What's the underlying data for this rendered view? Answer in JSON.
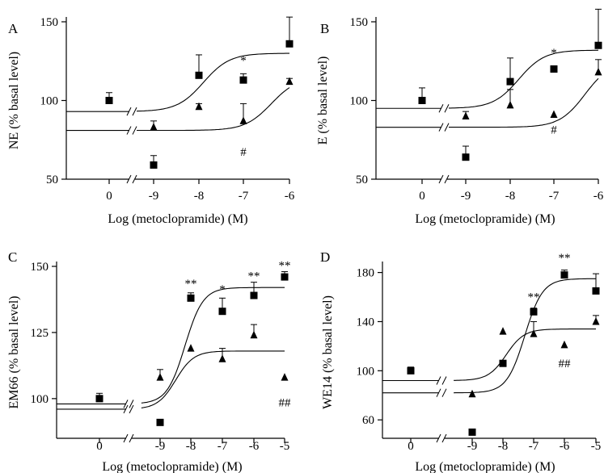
{
  "chart_data": [
    {
      "type": "scatter",
      "panel_label": "A",
      "xlabel": "Log (metoclopramide) (M)",
      "ylabel": "NE (% basal level)",
      "x_tick_labels": [
        "0",
        "-9",
        "-8",
        "-7",
        "-6"
      ],
      "y_ticks": [
        50,
        100,
        150
      ],
      "ylim": [
        50,
        150
      ],
      "series": [
        {
          "marker": "square",
          "x": [
            "0",
            "-9",
            "-8",
            "-7",
            "-6"
          ],
          "values": [
            100,
            59,
            116,
            113,
            136
          ],
          "errors": [
            5,
            6,
            13,
            4,
            17
          ],
          "fit": {
            "bottom": 93,
            "top": 130,
            "ec50_log": -7.9,
            "hill": 1.5
          }
        },
        {
          "marker": "triangle",
          "x": [
            "-9",
            "-8",
            "-7",
            "-6"
          ],
          "values": [
            83,
            96,
            87,
            112
          ],
          "errors": [
            4,
            2,
            11,
            2
          ],
          "fit": {
            "bottom": 81,
            "top": 115,
            "ec50_log": -6.4,
            "hill": 1.5
          }
        }
      ],
      "annotations": [
        {
          "text": "*",
          "x": "-7",
          "y": 123
        },
        {
          "text": "#",
          "x": "-7",
          "y": 65
        }
      ]
    },
    {
      "type": "scatter",
      "panel_label": "B",
      "xlabel": "Log (metoclopramide) (M)",
      "ylabel": "E (% basal level)",
      "x_tick_labels": [
        "0",
        "-9",
        "-8",
        "-7",
        "-6"
      ],
      "y_ticks": [
        50,
        100,
        150
      ],
      "ylim": [
        50,
        150
      ],
      "series": [
        {
          "marker": "square",
          "x": [
            "0",
            "-9",
            "-8",
            "-7",
            "-6"
          ],
          "values": [
            100,
            64,
            112,
            120,
            135
          ],
          "errors": [
            8,
            7,
            15,
            0,
            23
          ],
          "fit": {
            "bottom": 95,
            "top": 132,
            "ec50_log": -7.8,
            "hill": 1.5
          }
        },
        {
          "marker": "triangle",
          "x": [
            "-9",
            "-8",
            "-7",
            "-6"
          ],
          "values": [
            90,
            97,
            91,
            118
          ],
          "errors": [
            3,
            10,
            0,
            8
          ],
          "fit": {
            "bottom": 83,
            "top": 125,
            "ec50_log": -6.3,
            "hill": 1.5
          }
        }
      ],
      "annotations": [
        {
          "text": "*",
          "x": "-7",
          "y": 128
        },
        {
          "text": "#",
          "x": "-7",
          "y": 79
        }
      ]
    },
    {
      "type": "scatter",
      "panel_label": "C",
      "xlabel": "Log (metoclopramide) (M)",
      "ylabel": "EM66 (% basal level)",
      "x_tick_labels": [
        "0",
        "-9",
        "-8",
        "-7",
        "-6",
        "-5"
      ],
      "y_ticks": [
        100,
        125,
        150
      ],
      "ylim": [
        85,
        150
      ],
      "series": [
        {
          "marker": "square",
          "x": [
            "0",
            "-9",
            "-8",
            "-7",
            "-6",
            "-5"
          ],
          "values": [
            100,
            91,
            138,
            133,
            139,
            146
          ],
          "errors": [
            2,
            0,
            2,
            5,
            5,
            2
          ],
          "fit": {
            "bottom": 98,
            "top": 142,
            "ec50_log": -8.2,
            "hill": 1.5
          }
        },
        {
          "marker": "triangle",
          "x": [
            "-9",
            "-8",
            "-7",
            "-6",
            "-5"
          ],
          "values": [
            108,
            119,
            115,
            124,
            108
          ],
          "errors": [
            3,
            0,
            4,
            4,
            0
          ],
          "fit": {
            "bottom": 96,
            "top": 118,
            "ec50_log": -8.5,
            "hill": 1.5
          }
        }
      ],
      "annotations": [
        {
          "text": "**",
          "x": "-8",
          "y": 142
        },
        {
          "text": "*",
          "x": "-7",
          "y": 140
        },
        {
          "text": "**",
          "x": "-6",
          "y": 145
        },
        {
          "text": "**",
          "x": "-5",
          "y": 149
        },
        {
          "text": "##",
          "x": "-5",
          "y": 97
        }
      ]
    },
    {
      "type": "scatter",
      "panel_label": "D",
      "xlabel": "Log (metoclopramide) (M)",
      "ylabel": "WE14 (% basal level)",
      "x_tick_labels": [
        "0",
        "-9",
        "-8",
        "-7",
        "-6",
        "-5"
      ],
      "y_ticks": [
        60,
        100,
        140,
        180
      ],
      "ylim": [
        45,
        185
      ],
      "series": [
        {
          "marker": "square",
          "x": [
            "0",
            "-9",
            "-8",
            "-7",
            "-6",
            "-5"
          ],
          "values": [
            100,
            50,
            106,
            148,
            178,
            165
          ],
          "errors": [
            3,
            0,
            0,
            3,
            4,
            14
          ],
          "fit": {
            "bottom": 82,
            "top": 175,
            "ec50_log": -7.3,
            "hill": 1.5
          }
        },
        {
          "marker": "triangle",
          "x": [
            "-9",
            "-8",
            "-7",
            "-6",
            "-5"
          ],
          "values": [
            81,
            132,
            130,
            121,
            140
          ],
          "errors": [
            0,
            0,
            10,
            0,
            5
          ],
          "fit": {
            "bottom": 92,
            "top": 134,
            "ec50_log": -7.9,
            "hill": 1.5
          }
        }
      ],
      "annotations": [
        {
          "text": "**",
          "x": "-7",
          "y": 157
        },
        {
          "text": "**",
          "x": "-6",
          "y": 189
        },
        {
          "text": "##",
          "x": "-6",
          "y": 103
        }
      ]
    }
  ]
}
